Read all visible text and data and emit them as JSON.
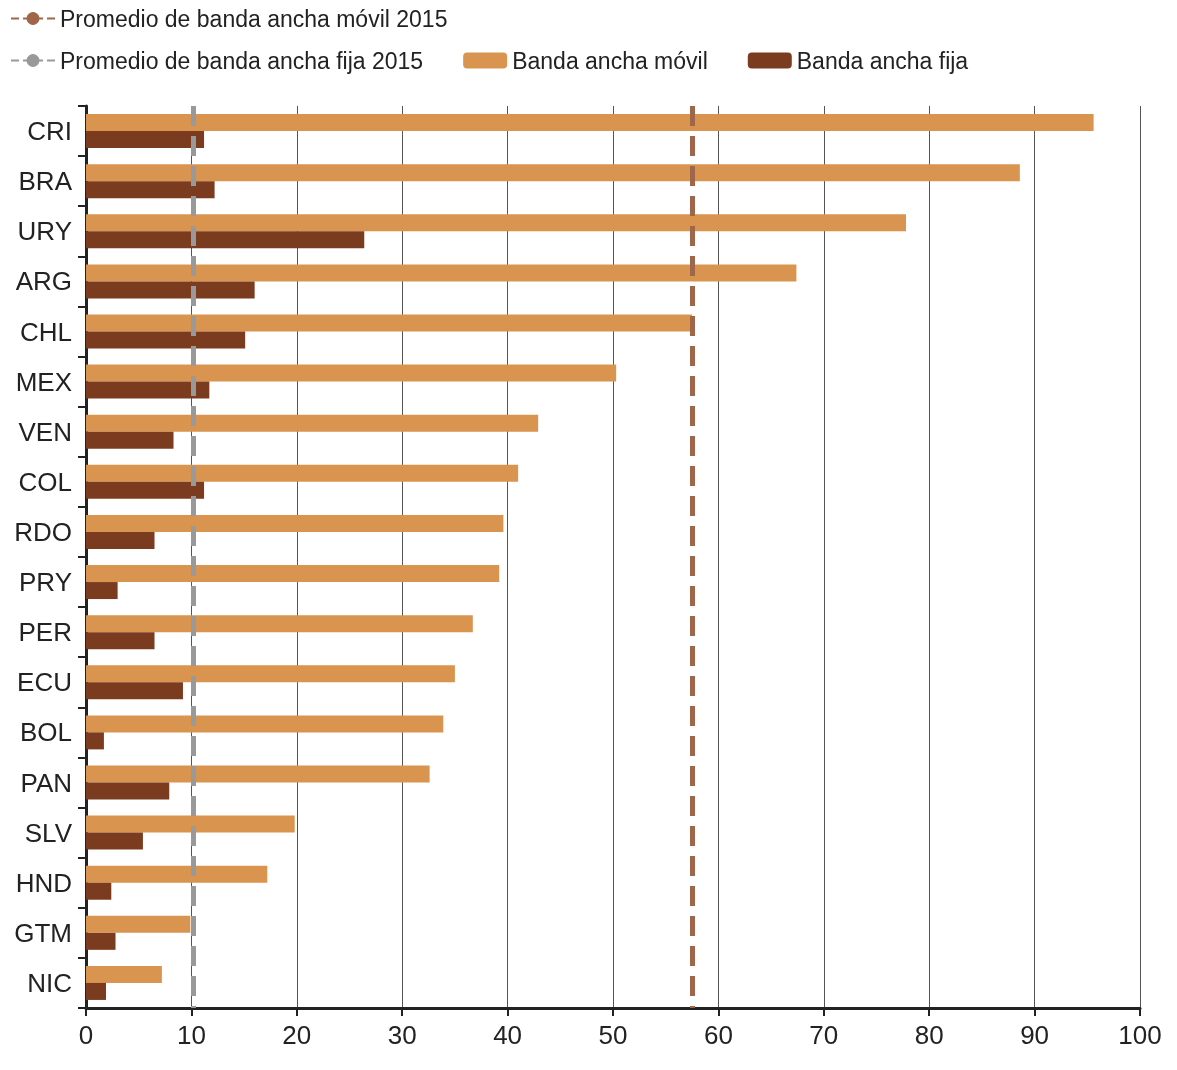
{
  "chart_data": {
    "type": "bar",
    "orientation": "horizontal",
    "categories": [
      "CRI",
      "BRA",
      "URY",
      "ARG",
      "CHL",
      "MEX",
      "VEN",
      "COL",
      "RDO",
      "PRY",
      "PER",
      "ECU",
      "BOL",
      "PAN",
      "SLV",
      "HND",
      "GTM",
      "NIC"
    ],
    "series": [
      {
        "name": "Banda ancha móvil",
        "color": "#d9954f",
        "values": [
          95.6,
          88.6,
          77.8,
          67.4,
          57.5,
          50.3,
          42.9,
          41.0,
          39.6,
          39.2,
          36.7,
          35.0,
          33.9,
          32.6,
          19.8,
          17.2,
          9.9,
          7.2
        ]
      },
      {
        "name": "Banda ancha fija",
        "color": "#7a3b1e",
        "values": [
          11.2,
          12.2,
          26.4,
          16.0,
          15.1,
          11.7,
          8.3,
          11.2,
          6.5,
          3.0,
          6.5,
          9.2,
          1.7,
          7.9,
          5.4,
          2.4,
          2.8,
          1.9
        ]
      }
    ],
    "ref_lines": [
      {
        "axis": "x",
        "value": 57.5,
        "label": "Promedio de banda ancha móvil 2015",
        "color": "#a0664a",
        "line_style": "dashed"
      },
      {
        "axis": "x",
        "value": 10.2,
        "label": "Promedio de banda ancha fija 2015",
        "color": "#999999",
        "line_style": "dashed"
      }
    ],
    "xlim": [
      0,
      100
    ],
    "xticks": [
      0,
      10,
      20,
      30,
      40,
      50,
      60,
      70,
      80,
      90,
      100
    ],
    "grid": "x",
    "legend": "top left"
  }
}
